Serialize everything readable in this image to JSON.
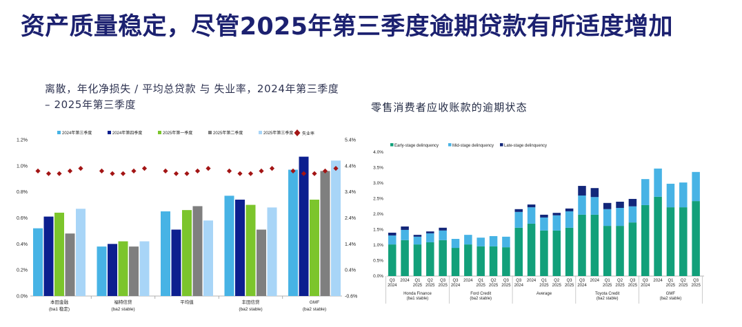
{
  "slide": {
    "title": "资产质量稳定，尽管2025年第三季度逾期贷款有所适度增加"
  },
  "chart_data": [
    {
      "type": "bar",
      "title_lines": [
        "离散，年化净损失 / 平均总贷款 与 失业率，2024年第三季度",
        "– 2025年第三季度"
      ],
      "categories": [
        "本田金融",
        "福特信贷",
        "平均值",
        "丰田信贷",
        "GMF"
      ],
      "category_ratings": [
        "(ba1 稳定)",
        "(ba2 stable)",
        null,
        "(ba2 stable)",
        "(ba2 stable)"
      ],
      "ylim": [
        0,
        1.2
      ],
      "y_step": 0.2,
      "y2lim": [
        -0.6,
        5.4
      ],
      "y2_step": 1.0,
      "legend": "top",
      "grid": false,
      "series": [
        {
          "name": "2024年第三季度",
          "color": "#47b3e5",
          "values": [
            0.52,
            0.38,
            0.65,
            0.77,
            0.97
          ]
        },
        {
          "name": "2024年第四季度",
          "color": "#0c1f8f",
          "values": [
            0.61,
            0.4,
            0.51,
            0.74,
            1.07
          ]
        },
        {
          "name": "2025年第一季度",
          "color": "#7cc52c",
          "values": [
            0.64,
            0.42,
            0.66,
            0.7,
            0.74
          ]
        },
        {
          "name": "2025年第二季度",
          "color": "#7f7f7f",
          "values": [
            0.48,
            0.38,
            0.69,
            0.51,
            0.96
          ]
        },
        {
          "name": "2025年第三季度",
          "color": "#a8d5f7",
          "values": [
            0.67,
            0.42,
            0.58,
            0.68,
            1.04
          ]
        }
      ],
      "line_series": {
        "name": "失业率",
        "axis": "right",
        "marker": "diamond",
        "color": "#a31515",
        "values": [
          4.2,
          4.1,
          4.1,
          4.2,
          4.3
        ]
      }
    },
    {
      "type": "bar",
      "stacked": true,
      "title": "零售消费者应收账款的逾期状态",
      "ylim": [
        0,
        4.0
      ],
      "y_step": 0.5,
      "legend": "top",
      "grid": false,
      "groups": [
        {
          "name": "Honda Finance",
          "rating": "(ba1 stable)"
        },
        {
          "name": "Ford Credit",
          "rating": "(ba2 stable)"
        },
        {
          "name": "Average",
          "rating": null
        },
        {
          "name": "Toyota Credit",
          "rating": "(ba2 stable)"
        },
        {
          "name": "GMF",
          "rating": "(ba2 stable)"
        }
      ],
      "period_labels": [
        {
          "line1": "Q3",
          "line2": "2024"
        },
        {
          "line1": "2024",
          "line2": null
        },
        {
          "line1": "Q1",
          "line2": "2025"
        },
        {
          "line1": "Q2",
          "line2": "2025"
        },
        {
          "line1": "Q3",
          "line2": "2025"
        }
      ],
      "series": [
        {
          "name": "Early-stage delinquency",
          "color": "#12a07a",
          "values": [
            [
              1.02,
              1.16,
              1.02,
              1.09,
              1.16
            ],
            [
              0.91,
              1.02,
              0.96,
              0.96,
              0.93
            ],
            [
              1.56,
              1.69,
              1.47,
              1.47,
              1.56
            ],
            [
              1.98,
              1.98,
              1.62,
              1.62,
              1.73
            ],
            [
              2.29,
              2.56,
              2.22,
              2.22,
              2.42
            ]
          ]
        },
        {
          "name": "Mid-stage delinquency",
          "color": "#47b3e5",
          "values": [
            [
              0.29,
              0.33,
              0.25,
              0.29,
              0.31
            ],
            [
              0.29,
              0.31,
              0.28,
              0.33,
              0.34
            ],
            [
              0.51,
              0.53,
              0.42,
              0.49,
              0.53
            ],
            [
              0.62,
              0.57,
              0.54,
              0.58,
              0.52
            ],
            [
              0.84,
              0.91,
              0.76,
              0.8,
              0.94
            ]
          ]
        },
        {
          "name": "Late-stage delinquency",
          "color": "#13277a",
          "values": [
            [
              0.09,
              0.11,
              0.06,
              0.06,
              0.09
            ],
            [
              0,
              0,
              0,
              0,
              0
            ],
            [
              0.09,
              0.09,
              0.09,
              0.08,
              0.09
            ],
            [
              0.31,
              0.29,
              0.2,
              0.2,
              0.24
            ],
            [
              0,
              0,
              0,
              0,
              0
            ]
          ]
        }
      ]
    }
  ]
}
